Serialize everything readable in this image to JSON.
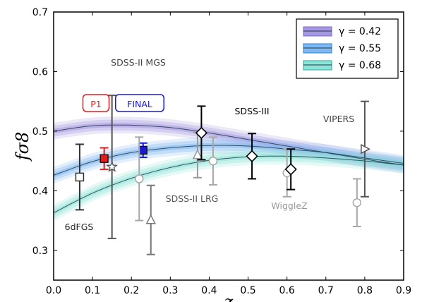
{
  "chart_data": {
    "type": "line",
    "xlabel": "z",
    "ylabel": "fσ8",
    "xlim": [
      0.0,
      0.9
    ],
    "ylim": [
      0.25,
      0.7
    ],
    "x_ticks": [
      "0.0",
      "0.1",
      "0.2",
      "0.3",
      "0.4",
      "0.5",
      "0.6",
      "0.7",
      "0.8",
      "0.9"
    ],
    "y_ticks": [
      "0.3",
      "0.4",
      "0.5",
      "0.6",
      "0.7"
    ],
    "legend_position": "top-right",
    "series": [
      {
        "name": "γ = 0.42",
        "color": "#7b68c8",
        "band_color": "#a598e0",
        "x": [
          0.0,
          0.1,
          0.2,
          0.3,
          0.4,
          0.5,
          0.6,
          0.7,
          0.8,
          0.9
        ],
        "y": [
          0.5,
          0.509,
          0.51,
          0.506,
          0.497,
          0.486,
          0.475,
          0.464,
          0.453,
          0.443
        ]
      },
      {
        "name": "γ = 0.55",
        "color": "#2b7fd4",
        "band_color": "#7fb8f0",
        "x": [
          0.0,
          0.1,
          0.2,
          0.3,
          0.4,
          0.5,
          0.6,
          0.7,
          0.8,
          0.9
        ],
        "y": [
          0.426,
          0.449,
          0.464,
          0.472,
          0.476,
          0.475,
          0.47,
          0.464,
          0.455,
          0.446
        ]
      },
      {
        "name": "γ = 0.68",
        "color": "#2aa89a",
        "band_color": "#8fe3d8",
        "x": [
          0.0,
          0.1,
          0.2,
          0.3,
          0.4,
          0.5,
          0.6,
          0.7,
          0.8,
          0.9
        ],
        "y": [
          0.363,
          0.396,
          0.421,
          0.439,
          0.451,
          0.457,
          0.458,
          0.455,
          0.45,
          0.443
        ]
      }
    ],
    "points": [
      {
        "survey": "6dFGS",
        "x": 0.067,
        "y": 0.423,
        "err": 0.055,
        "marker": "square",
        "color": "#333333"
      },
      {
        "survey": "P1",
        "x": 0.13,
        "y": 0.454,
        "err": 0.018,
        "marker": "filled-square",
        "color": "#e31b1b"
      },
      {
        "survey": "SDSS-II MGS",
        "x": 0.15,
        "y": 0.44,
        "err": 0.12,
        "marker": "star",
        "color": "#555555"
      },
      {
        "survey": "FINAL",
        "x": 0.23,
        "y": 0.468,
        "err": 0.012,
        "marker": "filled-square",
        "color": "#1a1ad0"
      },
      {
        "survey": "WiggleZ",
        "x": 0.22,
        "y": 0.42,
        "err": 0.07,
        "marker": "circle",
        "color": "#a8a8a8"
      },
      {
        "survey": "SDSS-II LRG",
        "x": 0.25,
        "y": 0.351,
        "err": 0.058,
        "marker": "triangle-up",
        "color": "#777777"
      },
      {
        "survey": "SDSS-II LRG",
        "x": 0.37,
        "y": 0.46,
        "err": 0.038,
        "marker": "triangle-up",
        "color": "#999999"
      },
      {
        "survey": "SDSS-III",
        "x": 0.38,
        "y": 0.497,
        "err": 0.045,
        "marker": "diamond",
        "color": "#000000"
      },
      {
        "survey": "WiggleZ",
        "x": 0.41,
        "y": 0.45,
        "err": 0.04,
        "marker": "circle",
        "color": "#a8a8a8"
      },
      {
        "survey": "SDSS-III",
        "x": 0.51,
        "y": 0.458,
        "err": 0.038,
        "marker": "diamond",
        "color": "#000000"
      },
      {
        "survey": "WiggleZ",
        "x": 0.6,
        "y": 0.43,
        "err": 0.04,
        "marker": "circle",
        "color": "#a8a8a8"
      },
      {
        "survey": "SDSS-III",
        "x": 0.61,
        "y": 0.436,
        "err": 0.034,
        "marker": "diamond",
        "color": "#000000"
      },
      {
        "survey": "WiggleZ",
        "x": 0.78,
        "y": 0.38,
        "err": 0.04,
        "marker": "circle",
        "color": "#a8a8a8"
      },
      {
        "survey": "VIPERS",
        "x": 0.8,
        "y": 0.47,
        "err": 0.08,
        "marker": "triangle-right",
        "color": "#555555"
      }
    ],
    "annotations": [
      {
        "text": "SDSS-II MGS",
        "color": "#444444",
        "boxed": false
      },
      {
        "text": "P1",
        "color": "#e31b1b",
        "boxed": true
      },
      {
        "text": "FINAL",
        "color": "#1a1ad0",
        "boxed": true
      },
      {
        "text": "SDSS-III",
        "color": "#000000",
        "boxed": false
      },
      {
        "text": "VIPERS",
        "color": "#444444",
        "boxed": false
      },
      {
        "text": "SDSS-II LRG",
        "color": "#555555",
        "boxed": false
      },
      {
        "text": "WiggleZ",
        "color": "#999999",
        "boxed": false
      },
      {
        "text": "6dFGS",
        "color": "#222222",
        "boxed": false
      }
    ]
  }
}
